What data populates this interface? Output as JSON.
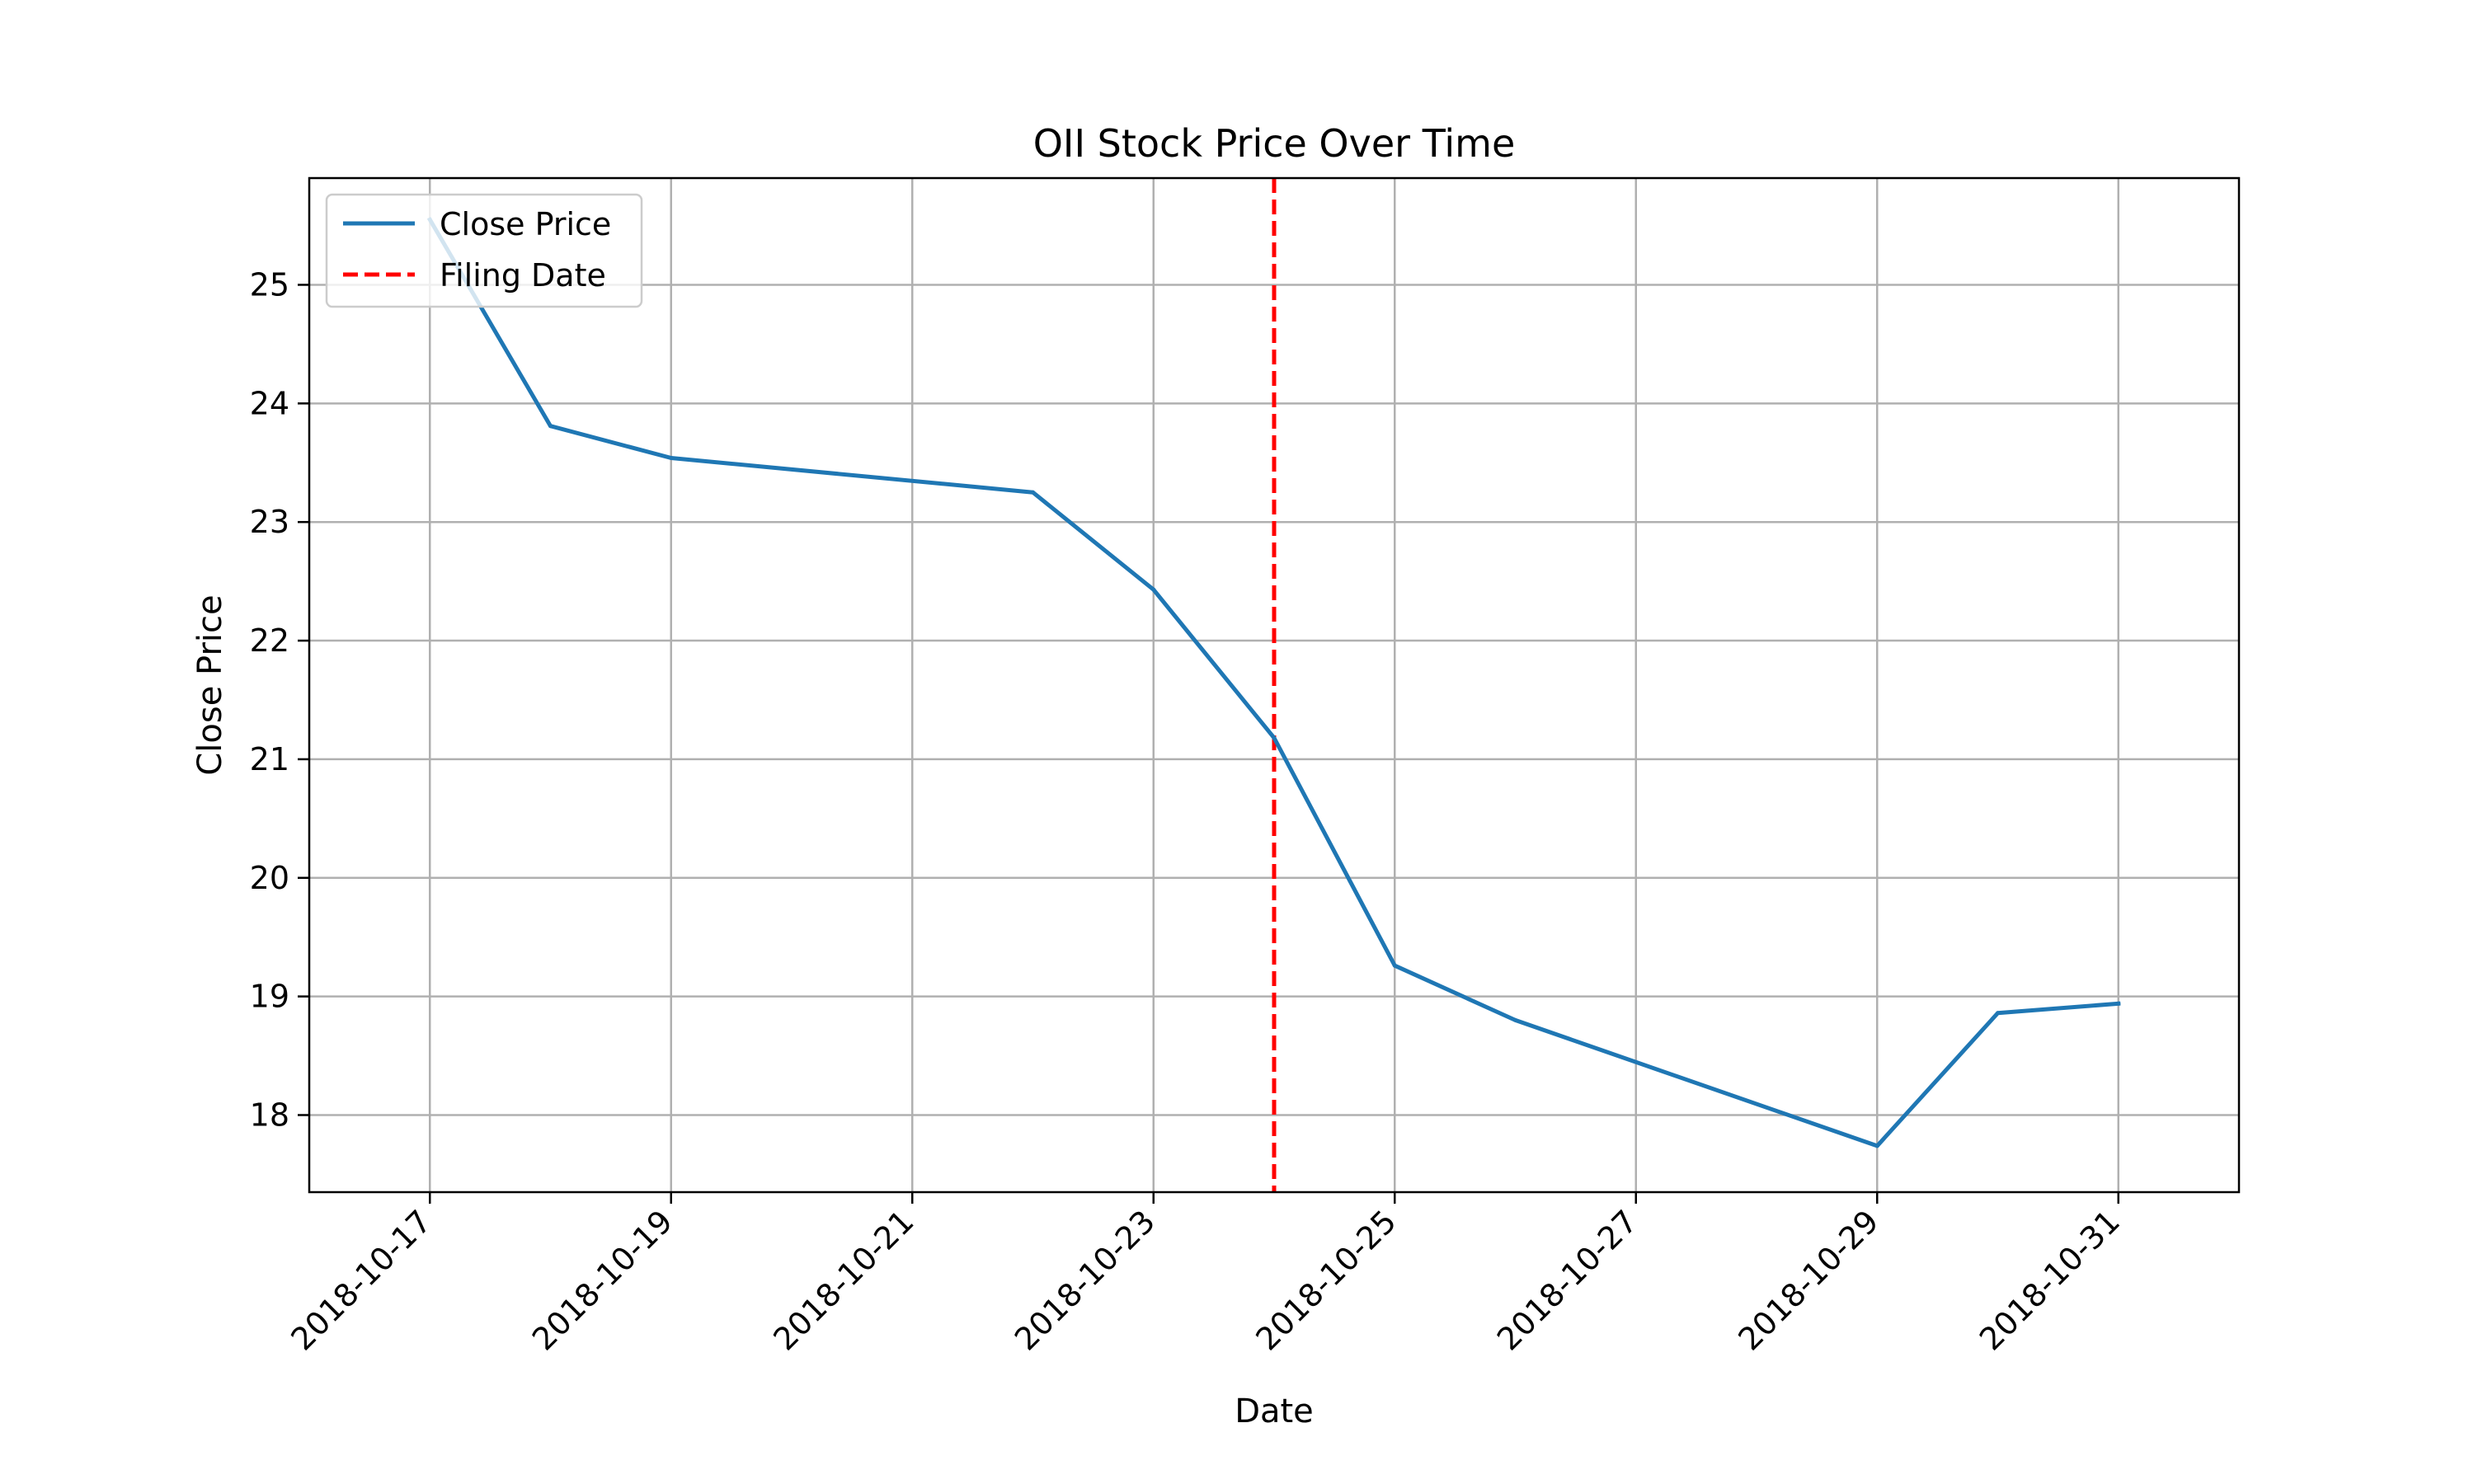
{
  "chart_data": {
    "type": "line",
    "title": "OII Stock Price Over Time",
    "xlabel": "Date",
    "ylabel": "Close Price",
    "x_ticks": [
      "2018-10-17",
      "2018-10-19",
      "2018-10-21",
      "2018-10-23",
      "2018-10-25",
      "2018-10-27",
      "2018-10-29",
      "2018-10-31"
    ],
    "y_ticks": [
      18,
      19,
      20,
      21,
      22,
      23,
      24,
      25
    ],
    "xlim": [
      "2018-10-16",
      "2018-11-01"
    ],
    "ylim": [
      17.35,
      25.9
    ],
    "grid": true,
    "legend_position": "top-left",
    "series": [
      {
        "name": "Close Price",
        "color": "#1f77b4",
        "style": "solid",
        "points": [
          {
            "x": "2018-10-17",
            "y": 25.55
          },
          {
            "x": "2018-10-18",
            "y": 23.81
          },
          {
            "x": "2018-10-19",
            "y": 23.54
          },
          {
            "x": "2018-10-22",
            "y": 23.25
          },
          {
            "x": "2018-10-23",
            "y": 22.43
          },
          {
            "x": "2018-10-24",
            "y": 21.18
          },
          {
            "x": "2018-10-25",
            "y": 19.26
          },
          {
            "x": "2018-10-26",
            "y": 18.8
          },
          {
            "x": "2018-10-29",
            "y": 17.74
          },
          {
            "x": "2018-10-30",
            "y": 18.86
          },
          {
            "x": "2018-10-31",
            "y": 18.94
          }
        ]
      }
    ],
    "reference_lines": [
      {
        "name": "Filing Date",
        "x": "2018-10-24",
        "color": "#ff0000",
        "style": "dashed"
      }
    ]
  }
}
